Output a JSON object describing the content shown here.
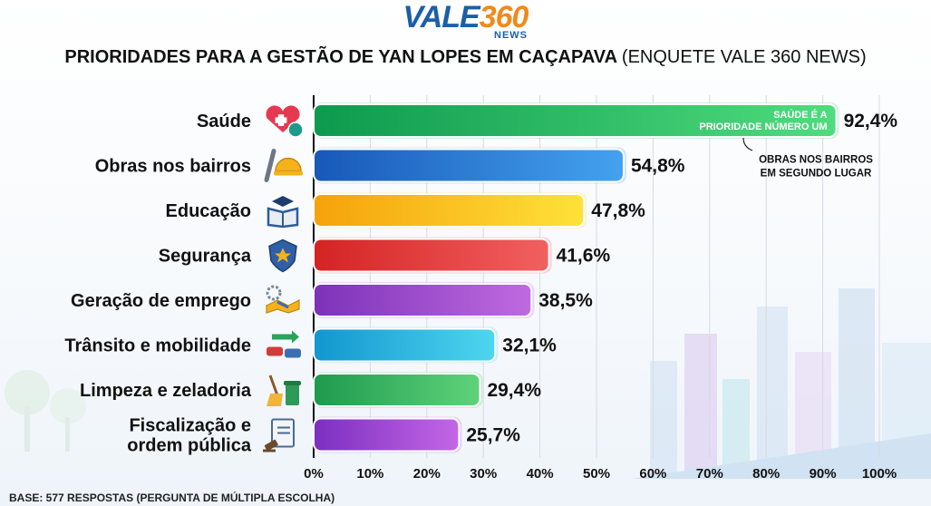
{
  "logo": {
    "part1": "VALE",
    "part2": "360",
    "part3": "NEWS"
  },
  "header": {
    "title_bold": "PRIORIDADES PARA A GESTÃO DE YAN LOPES EM CAÇAPAVA",
    "title_rest": "(ENQUETE VALE 360 NEWS)"
  },
  "footnote": "BASE: 577 RESPOSTAS (PERGUNTA DE MÚLTIPLA ESCOLHA)",
  "chart_data": {
    "type": "bar",
    "orientation": "horizontal",
    "title": "PRIORIDADES PARA A GESTÃO DE YAN LOPES EM CAÇAPAVA (ENQUETE VALE 360 NEWS)",
    "xlim": [
      0,
      100
    ],
    "x_ticks": [
      "0%",
      "10%",
      "20%",
      "30%",
      "40%",
      "50%",
      "60%",
      "70%",
      "80%",
      "90%",
      "100%"
    ],
    "grid": true,
    "categories": [
      [
        "Saúde"
      ],
      [
        "Obras nos bairros"
      ],
      [
        "Educação"
      ],
      [
        "Segurança"
      ],
      [
        "Geração de emprego"
      ],
      [
        "Trânsito e mobilidade"
      ],
      [
        "Limpeza e zeladoria"
      ],
      [
        "Fiscalização e",
        "ordem pública"
      ]
    ],
    "values": [
      92.4,
      54.8,
      47.8,
      41.6,
      38.5,
      32.1,
      29.4,
      25.7
    ],
    "value_labels": [
      "92,4%",
      "54,8%",
      "47,8%",
      "41,6%",
      "38,5%",
      "32,1%",
      "29,4%",
      "25,7%"
    ],
    "icons": [
      "heart-medical-icon",
      "tools-helmet-icon",
      "book-graduation-icon",
      "police-badge-icon",
      "handshake-gear-icon",
      "traffic-cars-icon",
      "broom-bin-icon",
      "clipboard-gavel-icon"
    ],
    "colors": [
      [
        "#0e9a4e",
        "#4fdc7e"
      ],
      [
        "#1858b8",
        "#44a2ef"
      ],
      [
        "#f5a20a",
        "#ffe13a"
      ],
      [
        "#d42323",
        "#f26060"
      ],
      [
        "#7c32b8",
        "#c06ae0"
      ],
      [
        "#1296cf",
        "#4fd6f0"
      ],
      [
        "#1e9a4e",
        "#5fd37a"
      ],
      [
        "#7b2fc0",
        "#c466e6"
      ]
    ],
    "annotations": [
      {
        "bar": 0,
        "text": [
          "SAÚDE É A",
          "PRIORIDADE NÚMERO UM"
        ]
      },
      {
        "bar": 1,
        "text": [
          "OBRAS NOS BAIRROS",
          "EM SEGUNDO LUGAR"
        ]
      }
    ]
  }
}
